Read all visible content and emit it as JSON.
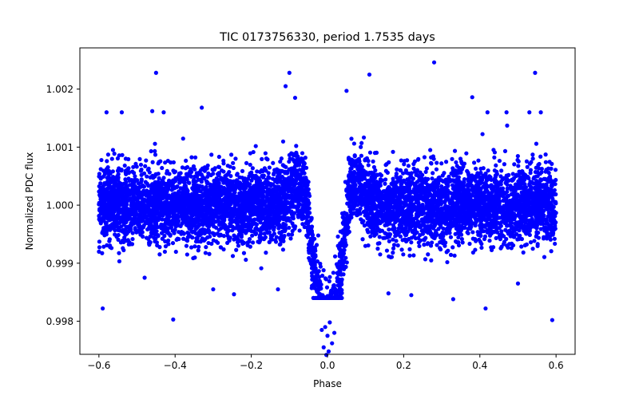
{
  "chart_data": {
    "type": "scatter",
    "title": "TIC 0173756330, period 1.7535 days",
    "xlabel": "Phase",
    "ylabel": "Normalized PDC flux",
    "xlim": [
      -0.65,
      0.65
    ],
    "ylim": [
      0.99743,
      1.00271
    ],
    "x_ticks": [
      -0.6,
      -0.4,
      -0.2,
      0.0,
      0.2,
      0.4,
      0.6
    ],
    "x_tick_labels": [
      "−0.6",
      "−0.4",
      "−0.2",
      "0.0",
      "0.2",
      "0.4",
      "0.6"
    ],
    "y_ticks": [
      0.998,
      0.999,
      1.0,
      1.001,
      1.002
    ],
    "y_tick_labels": [
      "0.998",
      "0.999",
      "1.000",
      "1.001",
      "1.002"
    ],
    "grid": false,
    "marker_color": "#0000ff",
    "description_of_series": "Phase-folded light curve; dense band of points around 1.000 from phase −0.6 to 0.6 with a transit dip centered at phase 0.0 reaching about 0.9975",
    "points": [
      [
        -0.59,
        0.99822
      ],
      [
        -0.45,
        1.00228
      ],
      [
        -0.405,
        0.99803
      ],
      [
        -0.11,
        1.00205
      ],
      [
        -0.1,
        1.00228
      ],
      [
        0.05,
        1.00197
      ],
      [
        0.11,
        1.00225
      ],
      [
        0.28,
        1.00246
      ],
      [
        0.415,
        0.99822
      ],
      [
        0.545,
        1.00228
      ],
      [
        0.59,
        0.99802
      ],
      [
        -0.58,
        1.0016
      ],
      [
        -0.54,
        1.0016
      ],
      [
        -0.46,
        1.00162
      ],
      [
        -0.43,
        1.0016
      ],
      [
        -0.33,
        1.00168
      ],
      [
        0.42,
        1.0016
      ],
      [
        0.47,
        1.0016
      ],
      [
        0.53,
        1.0016
      ],
      [
        0.56,
        1.0016
      ],
      [
        0.38,
        1.00186
      ],
      [
        -0.085,
        1.00185
      ],
      [
        -0.3,
        0.99855
      ],
      [
        0.16,
        0.99848
      ],
      [
        0.33,
        0.99838
      ],
      [
        -0.13,
        0.99855
      ],
      [
        0.22,
        0.99845
      ],
      [
        0.5,
        0.99865
      ],
      [
        -0.48,
        0.99875
      ],
      [
        -0.003,
        0.99742
      ],
      [
        0.003,
        0.99748
      ],
      [
        -0.01,
        0.99755
      ],
      [
        0.012,
        0.99762
      ],
      [
        0.0,
        0.99775
      ],
      [
        -0.015,
        0.99785
      ],
      [
        0.018,
        0.9978
      ],
      [
        0.006,
        0.99798
      ],
      [
        -0.006,
        0.9979
      ]
    ],
    "band": {
      "x_start": -0.6,
      "x_end": 0.6,
      "baseline": 1.0,
      "scatter_sigma": 0.00032,
      "transit_center": 0.0,
      "transit_depth": 0.0021,
      "transit_halfwidth": 0.055
    }
  }
}
